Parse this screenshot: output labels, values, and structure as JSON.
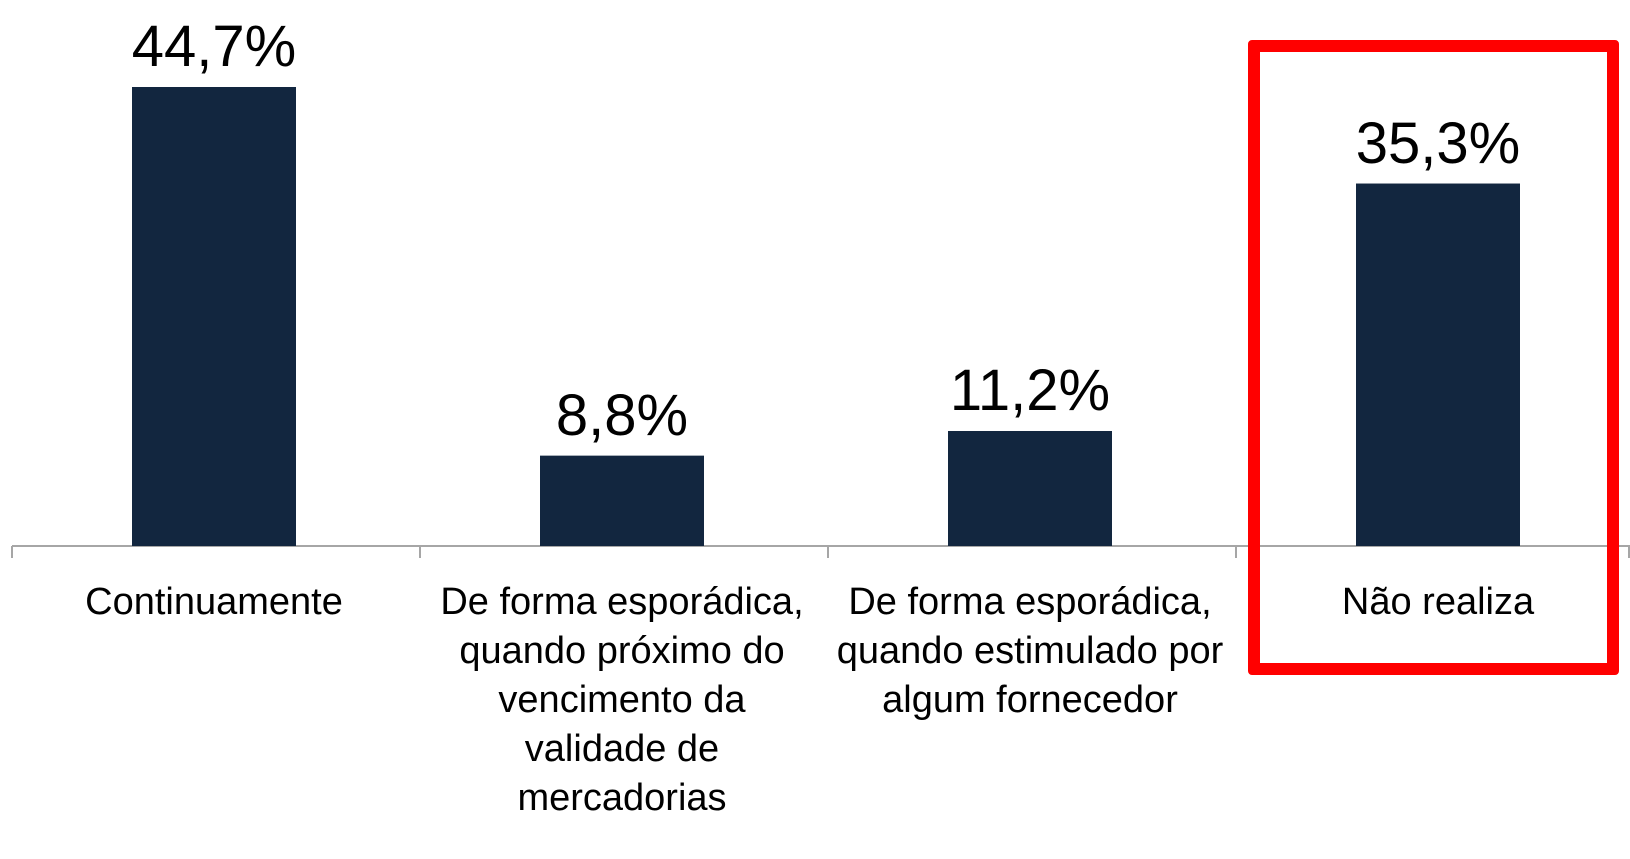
{
  "chart_data": {
    "type": "bar",
    "categories": [
      "Continuamente",
      "De forma esporádica, quando próximo do vencimento da validade de mercadorias",
      "De forma esporádica, quando estimulado por algum fornecedor",
      "Não realiza"
    ],
    "values": [
      44.7,
      8.8,
      11.2,
      35.3
    ],
    "value_labels": [
      "44,7%",
      "8,8%",
      "11,2%",
      "35,3%"
    ],
    "color": "#12263f"
  }
}
